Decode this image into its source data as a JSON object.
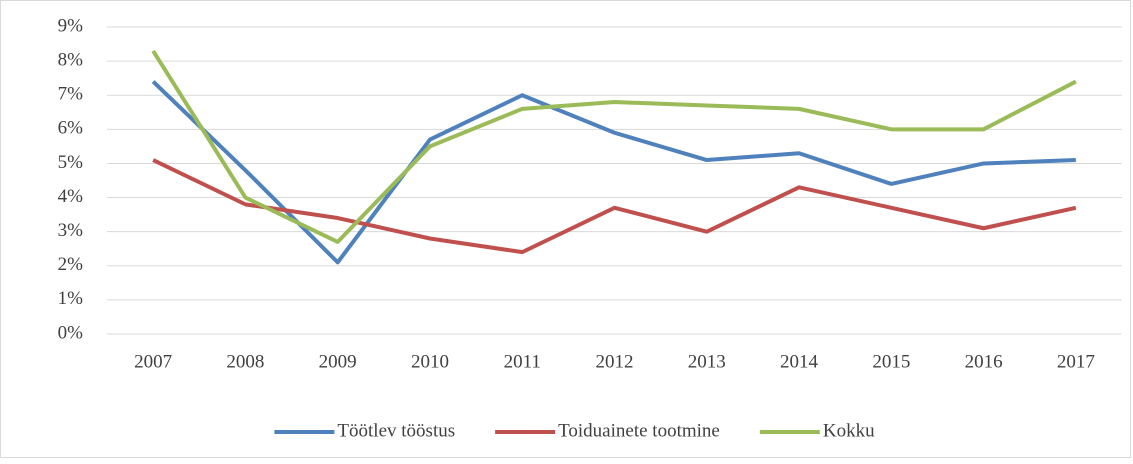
{
  "chart_data": {
    "type": "line",
    "categories": [
      "2007",
      "2008",
      "2009",
      "2010",
      "2011",
      "2012",
      "2013",
      "2014",
      "2015",
      "2016",
      "2017"
    ],
    "series": [
      {
        "name": "Töötlev tööstus",
        "color": "#4f81bd",
        "values": [
          7.4,
          4.8,
          2.1,
          5.7,
          7.0,
          5.9,
          5.1,
          5.3,
          4.4,
          5.0,
          5.1
        ]
      },
      {
        "name": "Toiduainete tootmine",
        "color": "#c0504d",
        "values": [
          5.1,
          3.8,
          3.4,
          2.8,
          2.4,
          3.7,
          3.0,
          4.3,
          3.7,
          3.1,
          3.7
        ]
      },
      {
        "name": "Kokku",
        "color": "#9bbb59",
        "values": [
          8.3,
          4.0,
          2.7,
          5.5,
          6.6,
          6.8,
          6.7,
          6.6,
          6.0,
          6.0,
          7.4
        ]
      }
    ],
    "ylim": [
      0,
      9
    ],
    "yticks": [
      {
        "value": 0,
        "label": "0%"
      },
      {
        "value": 1,
        "label": "1%"
      },
      {
        "value": 2,
        "label": "2%"
      },
      {
        "value": 3,
        "label": "3%"
      },
      {
        "value": 4,
        "label": "4%"
      },
      {
        "value": 5,
        "label": "5%"
      },
      {
        "value": 6,
        "label": "6%"
      },
      {
        "value": 7,
        "label": "7%"
      },
      {
        "value": 8,
        "label": "8%"
      },
      {
        "value": 9,
        "label": "9%"
      }
    ],
    "grid": true,
    "legend": "bottom"
  }
}
